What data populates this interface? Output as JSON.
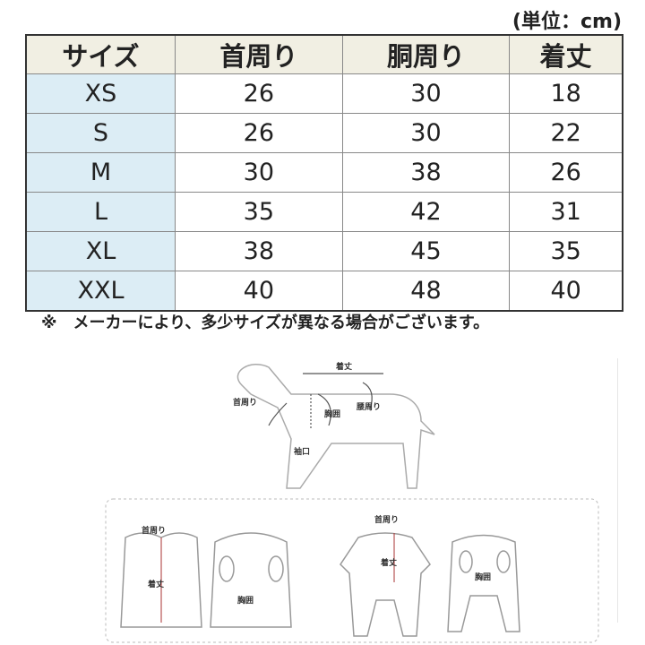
{
  "unit_label": "(単位：cm)",
  "table": {
    "headers": [
      "サイズ",
      "首周り",
      "胴周り",
      "着丈"
    ],
    "rows": [
      [
        "XS",
        "26",
        "30",
        "18"
      ],
      [
        "S",
        "26",
        "30",
        "22"
      ],
      [
        "M",
        "30",
        "38",
        "26"
      ],
      [
        "L",
        "35",
        "42",
        "31"
      ],
      [
        "XL",
        "38",
        "45",
        "35"
      ],
      [
        "XXL",
        "40",
        "48",
        "40"
      ]
    ]
  },
  "note": "※　メーカーにより、多少サイズが異なる場合がございます。",
  "diagram": {
    "dog": {
      "length": "着丈",
      "neck": "首周り",
      "chest": "胸囲",
      "waist": "腰周り",
      "sleeve": "袖口"
    },
    "vest": {
      "neck": "首周り",
      "length": "着丈",
      "chest": "胸囲"
    },
    "jumpsuit": {
      "neck": "首周り",
      "length": "着丈",
      "chest": "胸囲"
    }
  },
  "colors": {
    "header_bg": "#f1efe3",
    "size_col_bg": "#dcedf5"
  }
}
